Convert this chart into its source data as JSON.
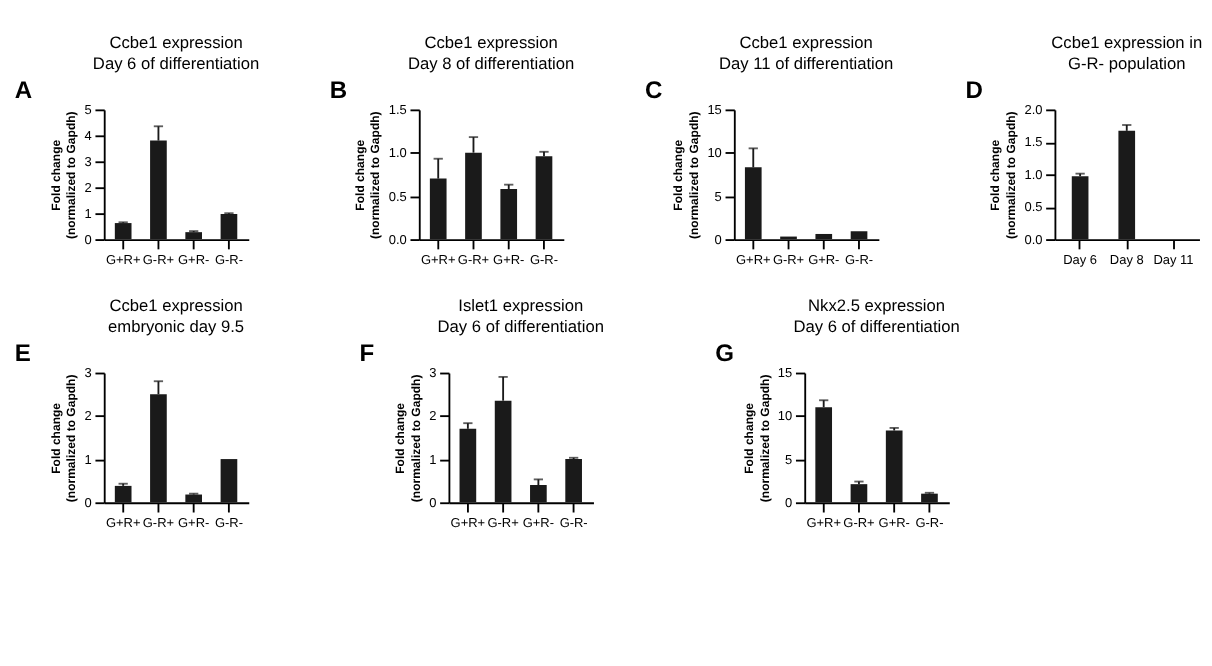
{
  "chart_data": [
    {
      "type": "bar",
      "annotations": [
        "A"
      ],
      "title": "Ccbe1 expression\nDay 6 of differentiation",
      "ylabel": "Fold change\n(normalized to Gapdh)",
      "categories": [
        "G+R+",
        "G-R+",
        "G+R-",
        "G-R-"
      ],
      "values": [
        0.62,
        3.8,
        0.27,
        0.97
      ],
      "errors": [
        [
          0.62,
          0.65
        ],
        [
          3.8,
          4.35
        ],
        [
          0.27,
          0.31
        ],
        [
          0.97,
          1.0
        ]
      ],
      "color": "#1a1a1a",
      "ylim": [
        0,
        5
      ],
      "yticks": [
        0,
        1,
        2,
        3,
        4,
        5
      ],
      "grid": false
    },
    {
      "type": "bar",
      "annotations": [
        "B"
      ],
      "title": "Ccbe1 expression\nDay 8 of differentiation",
      "ylabel": "Fold change\n(normalized to Gapdh)",
      "categories": [
        "G+R+",
        "G-R+",
        "G+R-",
        "G-R-"
      ],
      "values": [
        0.7,
        1.0,
        0.58,
        0.96
      ],
      "errors": [
        [
          0.7,
          0.93
        ],
        [
          1.0,
          1.18
        ],
        [
          0.58,
          0.63
        ],
        [
          0.96,
          1.01
        ]
      ],
      "color": "#1a1a1a",
      "ylim": [
        0,
        1.5
      ],
      "yticks": [
        {
          "value": 0,
          "label": "0.0"
        },
        0.5,
        {
          "value": 1,
          "label": "1.0"
        },
        1.5
      ],
      "grid": false
    },
    {
      "type": "bar",
      "annotations": [
        "C"
      ],
      "title": "Ccbe1 expression\nDay 11 of differentiation",
      "ylabel": "Fold change\n(normalized to Gapdh)",
      "categories": [
        "G+R+",
        "G-R+",
        "G+R-",
        "G-R-"
      ],
      "values": [
        8.3,
        0.3,
        0.6,
        0.9
      ],
      "errors": [
        [
          8.3,
          10.5
        ],
        null,
        null,
        null
      ],
      "color": "#1a1a1a",
      "ylim": [
        0,
        15
      ],
      "yticks": [
        0,
        5,
        10,
        15
      ],
      "grid": false
    },
    {
      "type": "bar",
      "annotations": [
        "D"
      ],
      "title": "Ccbe1 expression in\nG-R- population",
      "ylabel": "Fold change\n(normalized to Gapdh)",
      "categories": [
        "Day 6",
        "Day 8",
        "Day 11"
      ],
      "values": [
        0.97,
        1.67,
        null
      ],
      "errors": [
        [
          0.97,
          1.01
        ],
        [
          1.67,
          1.76
        ],
        null
      ],
      "color": "#1a1a1a",
      "ylim": [
        0,
        2
      ],
      "yticks": [
        {
          "value": 0,
          "label": "0.0"
        },
        0.5,
        {
          "value": 1,
          "label": "1.0"
        },
        1.5,
        {
          "value": 2,
          "label": "2.0"
        }
      ],
      "grid": false
    },
    {
      "type": "bar",
      "annotations": [
        "E"
      ],
      "title": "Ccbe1 expression\nembryonic day 9.5",
      "ylabel": "Fold change\n(normalized to Gapdh)",
      "categories": [
        "G+R+",
        "G-R+",
        "G+R-",
        "G-R-"
      ],
      "values": [
        0.38,
        2.5,
        0.18,
        1.0
      ],
      "errors": [
        [
          0.38,
          0.43
        ],
        [
          2.5,
          2.8
        ],
        [
          0.18,
          0.2
        ],
        null
      ],
      "color": "#1a1a1a",
      "ylim": [
        0,
        3
      ],
      "yticks": [
        0,
        1,
        2,
        3
      ],
      "grid": false
    },
    {
      "type": "bar",
      "annotations": [
        "F"
      ],
      "title": "Islet1 expression\nDay 6 of differentiation",
      "ylabel": "Fold change\n(normalized to Gapdh)",
      "categories": [
        "G+R+",
        "G-R+",
        "G+R-",
        "G-R-"
      ],
      "values": [
        1.7,
        2.35,
        0.4,
        1.0
      ],
      "errors": [
        [
          1.7,
          1.83
        ],
        [
          2.35,
          2.9
        ],
        [
          0.4,
          0.53
        ],
        [
          1.0,
          1.03
        ]
      ],
      "color": "#1a1a1a",
      "ylim": [
        0,
        3
      ],
      "yticks": [
        0,
        1,
        2,
        3
      ],
      "grid": false
    },
    {
      "type": "bar",
      "annotations": [
        "G"
      ],
      "title": "Nkx2.5 expression\nDay 6 of differentiation",
      "ylabel": "Fold change\n(normalized to Gapdh)",
      "categories": [
        "G+R+",
        "G-R+",
        "G+R-",
        "G-R-"
      ],
      "values": [
        11.0,
        2.1,
        8.3,
        1.0
      ],
      "errors": [
        [
          11.0,
          11.8
        ],
        [
          2.1,
          2.4
        ],
        [
          8.3,
          8.6
        ],
        [
          1.0,
          1.1
        ]
      ],
      "color": "#1a1a1a",
      "ylim": [
        0,
        15
      ],
      "yticks": [
        0,
        5,
        10,
        15
      ],
      "grid": false
    }
  ]
}
